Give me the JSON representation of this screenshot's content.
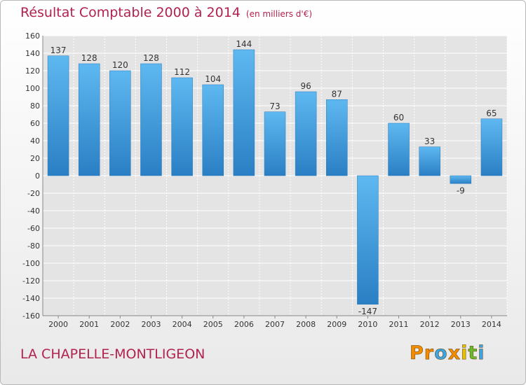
{
  "title": "Résultat Comptable 2000 à 2014",
  "unit": "(en milliers d'€)",
  "location": "LA CHAPELLE-MONTLIGEON",
  "brand": {
    "text": "Proxiti",
    "letters": [
      {
        "ch": "P",
        "color": "#f28b00"
      },
      {
        "ch": "r",
        "color": "#f28b00"
      },
      {
        "ch": "o",
        "color": "#3ea4e0"
      },
      {
        "ch": "x",
        "color": "#f28b00"
      },
      {
        "ch": "i",
        "color": "#e6c200"
      },
      {
        "ch": "t",
        "color": "#6cba2b"
      },
      {
        "ch": "i",
        "color": "#3ea4e0"
      }
    ]
  },
  "colors": {
    "bar_top": "#5eb8f0",
    "bar_bottom": "#2a7fc4",
    "accent": "#b1224f"
  },
  "chart_data": {
    "type": "bar",
    "categories": [
      "2000",
      "2001",
      "2002",
      "2003",
      "2004",
      "2005",
      "2006",
      "2007",
      "2008",
      "2009",
      "2010",
      "2011",
      "2012",
      "2013",
      "2014"
    ],
    "values": [
      137,
      128,
      120,
      128,
      112,
      104,
      144,
      73,
      96,
      87,
      -147,
      60,
      33,
      -9,
      65
    ],
    "value_labels": [
      "137",
      "128",
      "120",
      "128",
      "112",
      "104",
      "144",
      "73",
      "96",
      "87",
      "-147",
      "60",
      "33",
      "-9",
      "65"
    ],
    "ylim": [
      -160,
      160
    ],
    "yticks": [
      -160,
      -140,
      -120,
      -100,
      -80,
      -60,
      -40,
      -20,
      0,
      20,
      40,
      60,
      80,
      100,
      120,
      140,
      160
    ],
    "grid": true,
    "xlabel": "",
    "ylabel": ""
  }
}
